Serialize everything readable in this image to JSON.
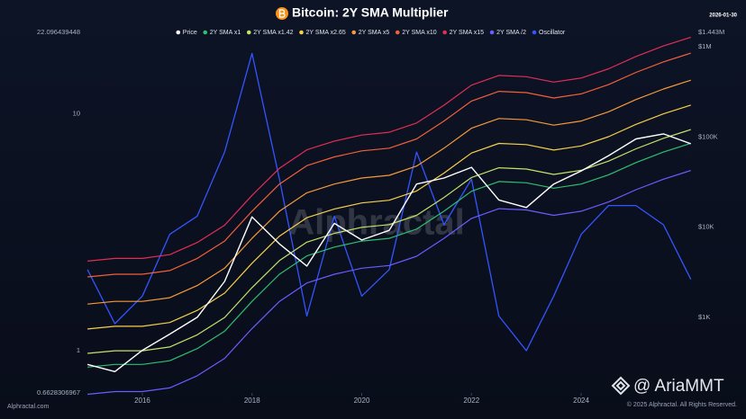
{
  "chart_data": {
    "type": "line",
    "title": "Bitcoin: 2Y SMA Multiplier",
    "date": "2026-01-30",
    "watermark": "Alphractal",
    "credit": "@ AriaMMT",
    "copyright": "© 2025 Alphractal. All Rights Reserved.",
    "source": "Alphractal.com",
    "x": [
      2015.0,
      2015.5,
      2016.0,
      2016.5,
      2017.0,
      2017.5,
      2018.0,
      2018.5,
      2019.0,
      2019.5,
      2020.0,
      2020.5,
      2021.0,
      2021.5,
      2022.0,
      2022.5,
      2023.0,
      2023.5,
      2024.0,
      2024.5,
      2025.0,
      2025.5,
      2026.0
    ],
    "xlim": [
      2014.9,
      2026.2
    ],
    "xticks": [
      2016,
      2018,
      2020,
      2022,
      2024
    ],
    "ylim": [
      0.6628306967,
      22.096439448
    ],
    "yticks": [
      0.6628306967,
      1,
      10,
      22.096439448
    ],
    "ylog": true,
    "y2lim": [
      145,
      1443000
    ],
    "y2ticks": [
      {
        "value": 1443000,
        "label": "$1.443M"
      },
      {
        "value": 1000000,
        "label": "$1M"
      },
      {
        "value": 100000,
        "label": "$100K"
      },
      {
        "value": 10000,
        "label": "$10K"
      },
      {
        "value": 1000,
        "label": "$1K"
      }
    ],
    "y2log": true,
    "grid": false,
    "series": [
      {
        "name": "Price",
        "color": "#ffffff",
        "axis": "y2",
        "values": [
          300,
          250,
          430,
          650,
          1000,
          2500,
          13000,
          6500,
          3700,
          11000,
          7200,
          9200,
          30000,
          35000,
          46000,
          20000,
          16500,
          30000,
          42000,
          62000,
          95000,
          108000,
          84000
        ]
      },
      {
        "name": "2Y SMA x1",
        "color": "#2fbf71",
        "axis": "y2",
        "values": [
          280,
          300,
          300,
          330,
          450,
          700,
          1500,
          3000,
          4800,
          6000,
          7000,
          7500,
          9500,
          15000,
          25000,
          32000,
          31000,
          27000,
          30000,
          38000,
          52000,
          68000,
          85000
        ]
      },
      {
        "name": "2Y SMA x1.42",
        "color": "#c5e26b",
        "axis": "y2",
        "values": [
          398,
          426,
          426,
          469,
          639,
          994,
          2130,
          4260,
          6816,
          8520,
          9940,
          10650,
          13490,
          21300,
          35500,
          45440,
          44020,
          38340,
          42600,
          53960,
          73840,
          96560,
          120700
        ]
      },
      {
        "name": "2Y SMA x2.65",
        "color": "#f5d04a",
        "axis": "y2",
        "values": [
          742,
          795,
          795,
          875,
          1193,
          1855,
          3975,
          7950,
          12720,
          15900,
          18550,
          19875,
          25175,
          39750,
          66250,
          84800,
          82150,
          71550,
          79500,
          100700,
          137800,
          180200,
          225250
        ]
      },
      {
        "name": "2Y SMA x5",
        "color": "#f59a3a",
        "axis": "y2",
        "values": [
          1400,
          1500,
          1500,
          1650,
          2250,
          3500,
          7500,
          15000,
          24000,
          30000,
          35000,
          37500,
          47500,
          75000,
          125000,
          160000,
          155000,
          135000,
          150000,
          190000,
          260000,
          340000,
          425000
        ]
      },
      {
        "name": "2Y SMA x10",
        "color": "#f0603a",
        "axis": "y2",
        "values": [
          2800,
          3000,
          3000,
          3300,
          4500,
          7000,
          15000,
          30000,
          48000,
          60000,
          70000,
          75000,
          95000,
          150000,
          250000,
          320000,
          310000,
          270000,
          300000,
          380000,
          520000,
          680000,
          850000
        ]
      },
      {
        "name": "2Y SMA x15",
        "color": "#e02f55",
        "axis": "y2",
        "values": [
          4200,
          4500,
          4500,
          4950,
          6750,
          10500,
          22500,
          45000,
          72000,
          90000,
          105000,
          112500,
          142500,
          225000,
          375000,
          480000,
          465000,
          405000,
          450000,
          570000,
          780000,
          1020000,
          1275000
        ]
      },
      {
        "name": "2Y SMA /2",
        "color": "#6a5cff",
        "axis": "y2",
        "values": [
          140,
          150,
          150,
          165,
          225,
          350,
          750,
          1500,
          2400,
          3000,
          3500,
          3750,
          4750,
          7500,
          12500,
          16000,
          15500,
          13500,
          15000,
          19000,
          26000,
          34000,
          42500
        ]
      },
      {
        "name": "Oscillator",
        "color": "#3355ff",
        "axis": "y",
        "values": [
          2.2,
          1.3,
          1.7,
          3.1,
          3.7,
          6.9,
          18,
          5.3,
          1.4,
          3.7,
          1.7,
          2.2,
          6.9,
          3.4,
          5.3,
          1.4,
          1.0,
          1.7,
          3.1,
          4.1,
          4.1,
          3.4,
          2.0
        ]
      }
    ]
  }
}
